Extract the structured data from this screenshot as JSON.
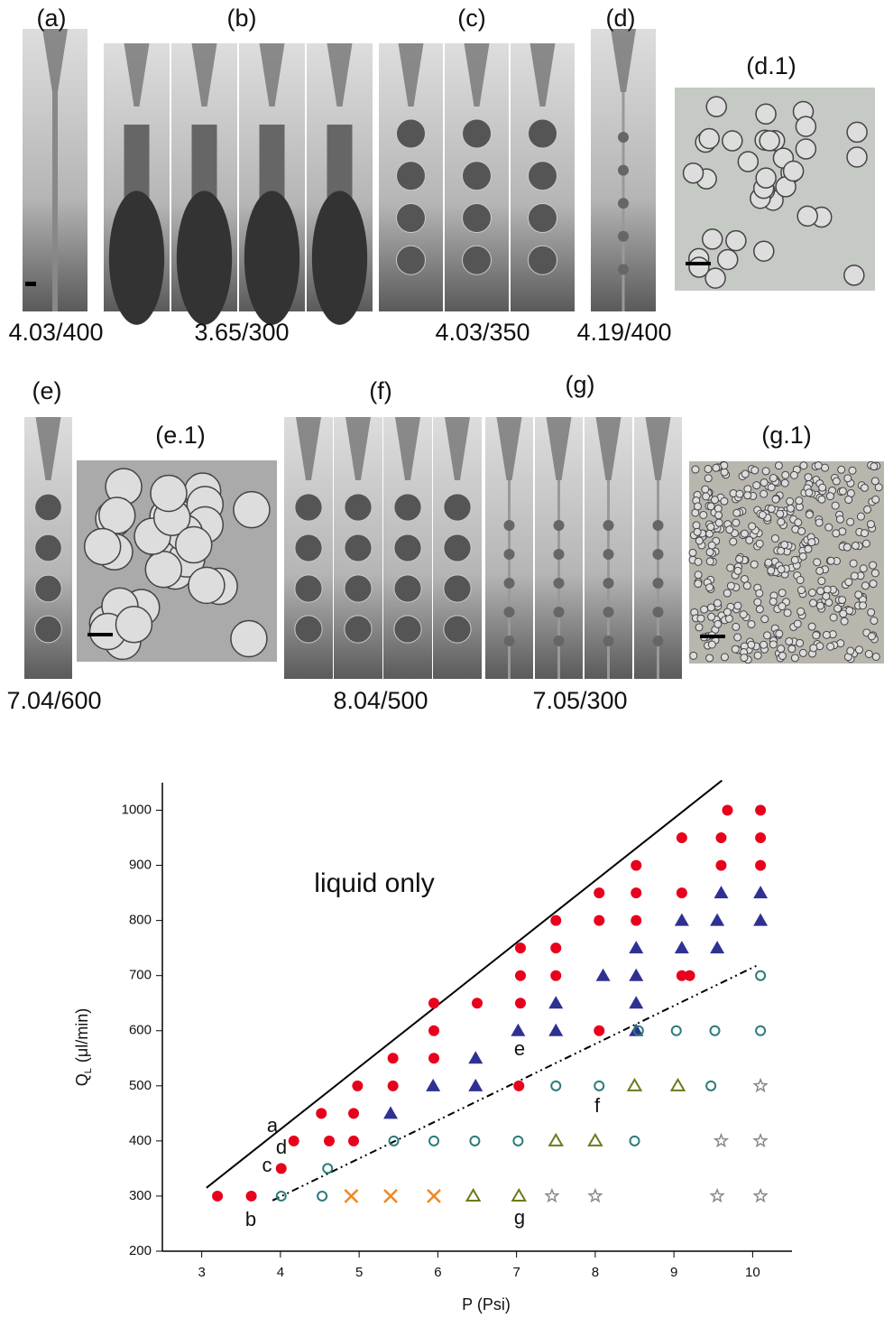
{
  "panels": {
    "labels": [
      "(a)",
      "(b)",
      "(c)",
      "(d)",
      "(d.1)",
      "(e)",
      "(e.1)",
      "(f)",
      "(g)",
      "(g.1)"
    ],
    "captions": [
      "4.03/400",
      "3.65/300",
      "4.03/350",
      "4.19/400",
      "7.04/600",
      "8.04/500",
      "7.05/300"
    ]
  },
  "chart_data": {
    "type": "scatter",
    "xlabel": "P (Psi)",
    "ylabel": {
      "main": "Q",
      "sub": "L",
      "unit": "(μl/min)"
    },
    "xlim": [
      2.5,
      10.5
    ],
    "xticks": [
      3,
      4,
      5,
      6,
      7,
      8,
      9,
      10
    ],
    "ylim": [
      200,
      1050
    ],
    "yticks": [
      200,
      300,
      400,
      500,
      600,
      700,
      800,
      900,
      1000
    ],
    "annotations": [
      "liquid only",
      "a",
      "b",
      "c",
      "d",
      "e",
      "f",
      "g"
    ],
    "series": [
      {
        "color": "#e8001c",
        "marker": "circle",
        "x": [
          3.2,
          3.63,
          4.01,
          4.17,
          4.62,
          4.93,
          4.52,
          4.93,
          4.98,
          5.43,
          5.43,
          5.95,
          5.95,
          5.95,
          6.5,
          7.03,
          7.05,
          7.05,
          7.05,
          7.5,
          7.5,
          7.5,
          8.05,
          8.05,
          8.05,
          8.52,
          8.52,
          8.52,
          9.1,
          9.1,
          9.1,
          9.2,
          9.6,
          9.6,
          9.68,
          10.1,
          10.1,
          10.1
        ],
        "values": [
          300,
          300,
          350,
          400,
          400,
          400,
          450,
          450,
          500,
          500,
          550,
          550,
          600,
          650,
          650,
          500,
          650,
          700,
          750,
          700,
          750,
          800,
          600,
          800,
          850,
          800,
          850,
          900,
          700,
          850,
          950,
          700,
          900,
          950,
          1000,
          900,
          950,
          1000
        ]
      },
      {
        "color": "#2e3192",
        "marker": "triangle",
        "x": [
          5.4,
          5.94,
          6.48,
          6.48,
          7.02,
          7.5,
          7.5,
          8.1,
          8.52,
          8.52,
          8.52,
          8.52,
          9.1,
          9.1,
          9.55,
          9.55,
          9.6,
          10.1,
          10.1
        ],
        "values": [
          450,
          500,
          500,
          550,
          600,
          600,
          650,
          700,
          600,
          650,
          700,
          750,
          750,
          800,
          750,
          800,
          850,
          800,
          850
        ]
      },
      {
        "color": "#2a7a7a",
        "marker": "open-circle",
        "x": [
          4.01,
          4.53,
          4.6,
          5.44,
          5.95,
          6.47,
          7.02,
          7.5,
          8.05,
          8.5,
          9.47,
          8.55,
          9.03,
          9.52,
          10.1,
          10.1
        ],
        "values": [
          300,
          300,
          350,
          400,
          400,
          400,
          400,
          500,
          500,
          400,
          500,
          600,
          600,
          600,
          600,
          700
        ]
      },
      {
        "color": "#f08a24",
        "marker": "cross",
        "x": [
          4.9,
          5.4,
          5.95
        ],
        "values": [
          300,
          300,
          300
        ]
      },
      {
        "color": "#6b7a1a",
        "marker": "open-triangle",
        "x": [
          6.45,
          7.03,
          7.5,
          8.0,
          8.5,
          9.05
        ],
        "values": [
          300,
          300,
          400,
          400,
          500,
          500
        ]
      },
      {
        "color": "#888888",
        "marker": "star",
        "x": [
          7.45,
          8.0,
          9.55,
          10.1,
          9.6,
          10.1,
          10.1
        ],
        "values": [
          300,
          300,
          300,
          300,
          400,
          400,
          500
        ]
      }
    ],
    "lines": [
      {
        "style": "solid",
        "x": [
          3.06,
          9.61
        ],
        "values": [
          315,
          1054
        ]
      },
      {
        "style": "dash-dot",
        "x": [
          3.9,
          10.05
        ],
        "values": [
          292,
          718
        ]
      }
    ]
  }
}
